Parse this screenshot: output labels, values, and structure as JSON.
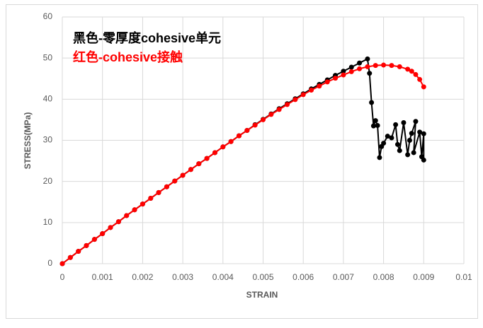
{
  "chart_data": {
    "type": "line",
    "x_label": "STRAIN",
    "y_label": "STRESS(MPa)",
    "xlim": [
      0,
      0.01
    ],
    "xticks": [
      0,
      0.001,
      0.002,
      0.003,
      0.004,
      0.005,
      0.006,
      0.007,
      0.008,
      0.009,
      0.01
    ],
    "ylim": [
      0,
      60
    ],
    "yticks": [
      0,
      10,
      20,
      30,
      40,
      50,
      60
    ],
    "grid": true,
    "series": [
      {
        "name": "黑色-零厚度cohesive单元",
        "color": "#000000",
        "x": [
          0,
          0.0002,
          0.0004,
          0.0006,
          0.0008,
          0.001,
          0.0012,
          0.0014,
          0.0016,
          0.0018,
          0.002,
          0.0022,
          0.0024,
          0.0026,
          0.0028,
          0.003,
          0.0032,
          0.0034,
          0.0036,
          0.0038,
          0.004,
          0.0042,
          0.0044,
          0.0046,
          0.0048,
          0.005,
          0.0052,
          0.0054,
          0.0056,
          0.0058,
          0.006,
          0.0062,
          0.0064,
          0.0066,
          0.0068,
          0.007,
          0.0072,
          0.0074,
          0.0076,
          0.00765,
          0.0077,
          0.00775,
          0.0078,
          0.00785,
          0.0079,
          0.00795,
          0.008,
          0.0081,
          0.0082,
          0.0083,
          0.00835,
          0.0084,
          0.0085,
          0.0086,
          0.00865,
          0.0087,
          0.0088,
          0.00875,
          0.0089,
          0.00895,
          0.009,
          0.009
        ],
        "values": [
          0,
          1.5,
          3,
          4.4,
          5.9,
          7.3,
          8.8,
          10.2,
          11.7,
          13.1,
          14.5,
          15.9,
          17.3,
          18.7,
          20.1,
          21.5,
          22.9,
          24.3,
          25.6,
          27,
          28.4,
          29.7,
          31.1,
          32.4,
          33.8,
          35.1,
          36.4,
          37.7,
          38.9,
          40.1,
          41.3,
          42.5,
          43.6,
          44.7,
          45.8,
          46.8,
          47.8,
          48.8,
          49.8,
          46.3,
          39.2,
          33.5,
          34.8,
          33.6,
          25.8,
          28.5,
          29.3,
          31,
          30.6,
          33.8,
          29,
          27.5,
          34.3,
          26.5,
          30,
          31.7,
          34.6,
          27,
          32,
          26,
          31.6,
          25.2
        ]
      },
      {
        "name": "红色-cohesive接触",
        "color": "#ff0000",
        "x": [
          0,
          0.0002,
          0.0004,
          0.0006,
          0.0008,
          0.001,
          0.0012,
          0.0014,
          0.0016,
          0.0018,
          0.002,
          0.0022,
          0.0024,
          0.0026,
          0.0028,
          0.003,
          0.0032,
          0.0034,
          0.0036,
          0.0038,
          0.004,
          0.0042,
          0.0044,
          0.0046,
          0.0048,
          0.005,
          0.0052,
          0.0054,
          0.0056,
          0.0058,
          0.006,
          0.0062,
          0.0064,
          0.0066,
          0.0068,
          0.007,
          0.0072,
          0.0074,
          0.0076,
          0.0078,
          0.008,
          0.0082,
          0.0084,
          0.0086,
          0.0087,
          0.0088,
          0.0089,
          0.009
        ],
        "values": [
          0,
          1.5,
          3,
          4.4,
          5.9,
          7.3,
          8.8,
          10.2,
          11.7,
          13.1,
          14.5,
          15.9,
          17.3,
          18.7,
          20.1,
          21.5,
          22.9,
          24.3,
          25.6,
          27,
          28.4,
          29.7,
          31.1,
          32.4,
          33.7,
          35,
          36.3,
          37.5,
          38.7,
          39.9,
          41.1,
          42.2,
          43.2,
          44.2,
          45.1,
          45.9,
          46.7,
          47.4,
          47.9,
          48.2,
          48.3,
          48.2,
          47.9,
          47.3,
          46.8,
          46,
          44.8,
          43
        ]
      }
    ]
  }
}
